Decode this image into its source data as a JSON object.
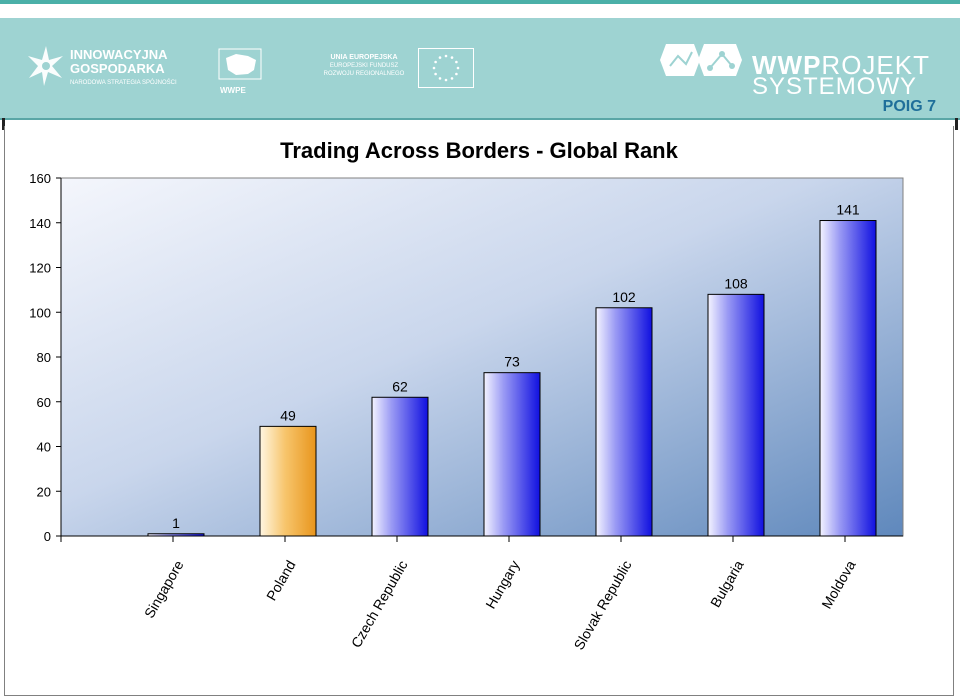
{
  "header": {
    "logo_ig": {
      "line1": "INNOWACYJNA",
      "line2": "GOSPODARKA",
      "line3": "NARODOWA STRATEGIA SPÓJNOŚCI"
    },
    "logo_wwpe": {
      "label": "WWPE"
    },
    "logo_ue": {
      "line1": "UNIA EUROPEJSKA",
      "line2": "EUROPEJSKI FUNDUSZ",
      "line3": "ROZWOJU REGIONALNEGO"
    },
    "logo_wwp": {
      "bold": "WWP",
      "rest": "ROJEKT",
      "line2": "SYSTEMOWY",
      "poig": "POIG 7"
    }
  },
  "colors": {
    "banner": "#9ed3d2",
    "bar_blue": "#1f1fe0",
    "bar_highlight": "#f0a733",
    "plot_bg_light": "#f0f3fb",
    "plot_bg_dark": "#6f95c4"
  },
  "chart_data": {
    "type": "bar",
    "title": "Trading Across Borders - Global Rank",
    "categories": [
      "Singapore",
      "Poland",
      "Czech Republic",
      "Hungary",
      "Slovak Republic",
      "Bulgaria",
      "Moldova"
    ],
    "values": [
      1,
      49,
      62,
      73,
      102,
      108,
      141
    ],
    "highlight_index": 1,
    "ylim": [
      0,
      160
    ],
    "yticks": [
      0,
      20,
      40,
      60,
      80,
      100,
      120,
      140,
      160
    ],
    "data_labels": true,
    "grid": false,
    "legend": "none"
  }
}
